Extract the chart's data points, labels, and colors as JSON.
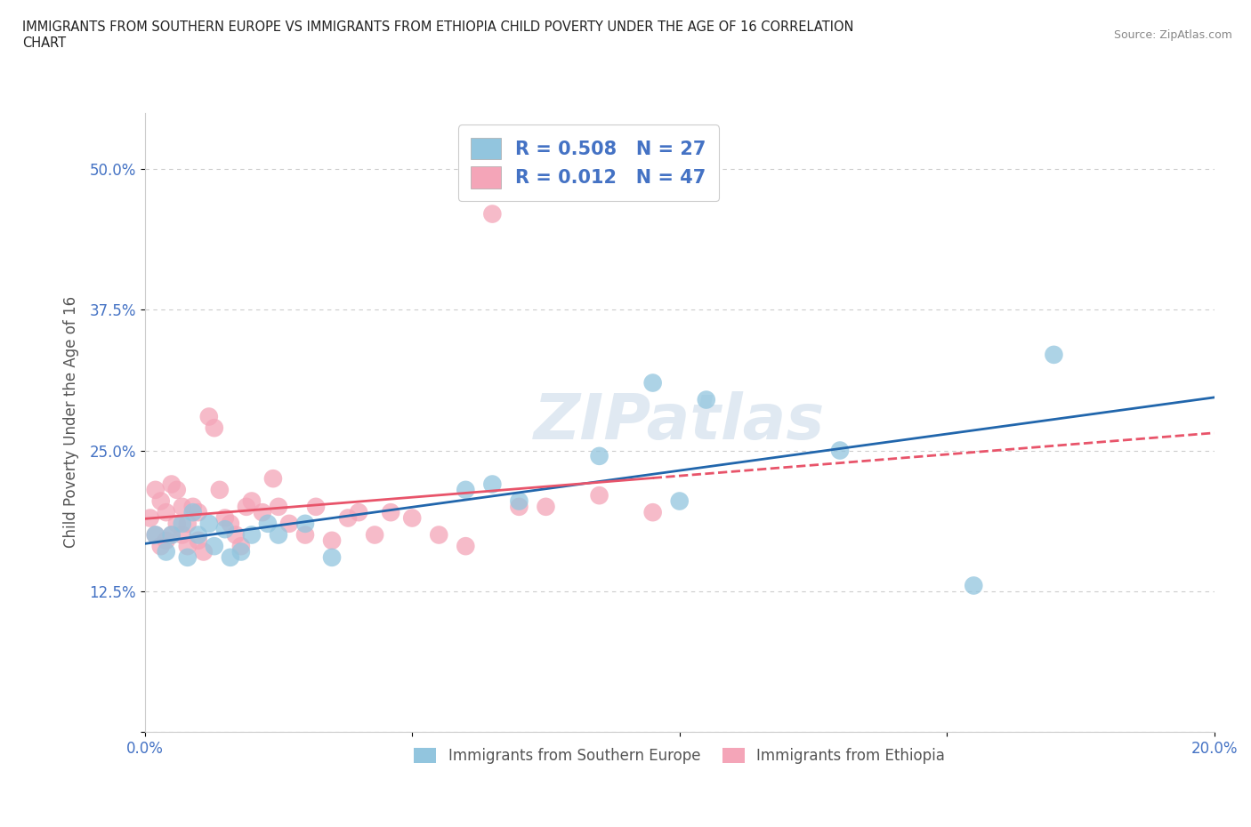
{
  "title": "IMMIGRANTS FROM SOUTHERN EUROPE VS IMMIGRANTS FROM ETHIOPIA CHILD POVERTY UNDER THE AGE OF 16 CORRELATION\nCHART",
  "source_text": "Source: ZipAtlas.com",
  "ylabel": "Child Poverty Under the Age of 16",
  "xlabel_blue": "Immigrants from Southern Europe",
  "xlabel_pink": "Immigrants from Ethiopia",
  "x_min": 0.0,
  "x_max": 0.2,
  "y_min": 0.0,
  "y_max": 0.55,
  "x_ticks": [
    0.0,
    0.05,
    0.1,
    0.15,
    0.2
  ],
  "x_tick_labels": [
    "0.0%",
    "",
    "",
    "",
    "20.0%"
  ],
  "y_ticks": [
    0.0,
    0.125,
    0.25,
    0.375,
    0.5
  ],
  "y_tick_labels": [
    "",
    "12.5%",
    "25.0%",
    "37.5%",
    "50.0%"
  ],
  "R_blue": 0.508,
  "N_blue": 27,
  "R_pink": 0.012,
  "N_pink": 47,
  "blue_color": "#92c5de",
  "pink_color": "#f4a5b8",
  "blue_line_color": "#2166ac",
  "pink_line_color": "#e8546a",
  "grid_color": "#cccccc",
  "watermark": "ZIPatlas",
  "blue_scatter_x": [
    0.002,
    0.004,
    0.005,
    0.007,
    0.008,
    0.009,
    0.01,
    0.012,
    0.013,
    0.015,
    0.016,
    0.018,
    0.02,
    0.023,
    0.025,
    0.03,
    0.035,
    0.06,
    0.065,
    0.07,
    0.085,
    0.095,
    0.1,
    0.105,
    0.13,
    0.155,
    0.17
  ],
  "blue_scatter_y": [
    0.175,
    0.16,
    0.175,
    0.185,
    0.155,
    0.195,
    0.175,
    0.185,
    0.165,
    0.18,
    0.155,
    0.16,
    0.175,
    0.185,
    0.175,
    0.185,
    0.155,
    0.215,
    0.22,
    0.205,
    0.245,
    0.31,
    0.205,
    0.295,
    0.25,
    0.13,
    0.335
  ],
  "pink_scatter_x": [
    0.001,
    0.002,
    0.002,
    0.003,
    0.003,
    0.004,
    0.004,
    0.005,
    0.005,
    0.006,
    0.006,
    0.007,
    0.007,
    0.008,
    0.008,
    0.009,
    0.01,
    0.01,
    0.011,
    0.012,
    0.013,
    0.014,
    0.015,
    0.016,
    0.017,
    0.018,
    0.019,
    0.02,
    0.022,
    0.024,
    0.025,
    0.027,
    0.03,
    0.032,
    0.035,
    0.038,
    0.04,
    0.043,
    0.046,
    0.05,
    0.055,
    0.06,
    0.065,
    0.07,
    0.075,
    0.085,
    0.095
  ],
  "pink_scatter_y": [
    0.19,
    0.175,
    0.215,
    0.165,
    0.205,
    0.17,
    0.195,
    0.175,
    0.22,
    0.185,
    0.215,
    0.175,
    0.2,
    0.165,
    0.185,
    0.2,
    0.17,
    0.195,
    0.16,
    0.28,
    0.27,
    0.215,
    0.19,
    0.185,
    0.175,
    0.165,
    0.2,
    0.205,
    0.195,
    0.225,
    0.2,
    0.185,
    0.175,
    0.2,
    0.17,
    0.19,
    0.195,
    0.175,
    0.195,
    0.19,
    0.175,
    0.165,
    0.46,
    0.2,
    0.2,
    0.21,
    0.195
  ]
}
